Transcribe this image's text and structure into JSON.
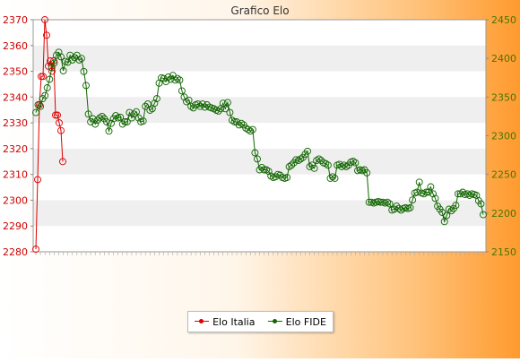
{
  "chart_data": {
    "type": "line",
    "title": "Grafico Elo",
    "legend_position": "bottom-center",
    "grid": "horizontal-bands",
    "left_axis": {
      "ylim": [
        2280,
        2370
      ],
      "ticks": [
        2280,
        2290,
        2300,
        2310,
        2320,
        2330,
        2340,
        2350,
        2360,
        2370
      ],
      "color": "#cc0000"
    },
    "right_axis": {
      "ylim": [
        2150,
        2450
      ],
      "ticks": [
        2150,
        2200,
        2250,
        2300,
        2350,
        2400,
        2450
      ],
      "color": "#447700"
    },
    "series": [
      {
        "name": "Elo Italia",
        "axis": "left",
        "color": "#dd0000",
        "values": [
          2281,
          2308,
          2337,
          2348,
          2348,
          2370,
          2364,
          2352,
          2354,
          2350,
          2354,
          2333,
          2333,
          2330,
          2327,
          2315
        ]
      },
      {
        "name": "Elo FIDE",
        "axis": "right",
        "color": "#116600",
        "values": [
          2330,
          2340,
          2338,
          2348,
          2352,
          2362,
          2373,
          2388,
          2394,
          2404,
          2408,
          2402,
          2384,
          2396,
          2395,
          2404,
          2398,
          2401,
          2404,
          2398,
          2400,
          2383,
          2365,
          2328,
          2318,
          2322,
          2315,
          2320,
          2323,
          2325,
          2322,
          2318,
          2306,
          2316,
          2322,
          2326,
          2323,
          2324,
          2315,
          2318,
          2318,
          2330,
          2323,
          2328,
          2331,
          2323,
          2318,
          2319,
          2338,
          2341,
          2333,
          2335,
          2342,
          2348,
          2368,
          2375,
          2374,
          2370,
          2376,
          2373,
          2378,
          2372,
          2374,
          2372,
          2358,
          2350,
          2344,
          2346,
          2338,
          2336,
          2340,
          2341,
          2338,
          2341,
          2337,
          2340,
          2337,
          2336,
          2335,
          2333,
          2332,
          2335,
          2342,
          2335,
          2343,
          2330,
          2320,
          2318,
          2318,
          2314,
          2316,
          2314,
          2310,
          2308,
          2306,
          2308,
          2278,
          2270,
          2256,
          2259,
          2256,
          2256,
          2254,
          2248,
          2246,
          2247,
          2250,
          2249,
          2246,
          2245,
          2246,
          2260,
          2262,
          2265,
          2269,
          2268,
          2270,
          2272,
          2276,
          2280,
          2260,
          2262,
          2258,
          2268,
          2270,
          2268,
          2265,
          2264,
          2262,
          2245,
          2247,
          2245,
          2262,
          2263,
          2260,
          2262,
          2260,
          2262,
          2266,
          2267,
          2265,
          2255,
          2256,
          2255,
          2256,
          2252,
          2214,
          2214,
          2213,
          2214,
          2215,
          2214,
          2214,
          2213,
          2214,
          2212,
          2204,
          2205,
          2209,
          2206,
          2204,
          2206,
          2207,
          2206,
          2207,
          2217,
          2226,
          2227,
          2240,
          2226,
          2225,
          2227,
          2227,
          2234,
          2225,
          2219,
          2209,
          2205,
          2201,
          2189,
          2197,
          2205,
          2203,
          2206,
          2210,
          2225,
          2225,
          2227,
          2224,
          2225,
          2223,
          2225,
          2224,
          2223,
          2216,
          2212,
          2198
        ]
      }
    ]
  }
}
